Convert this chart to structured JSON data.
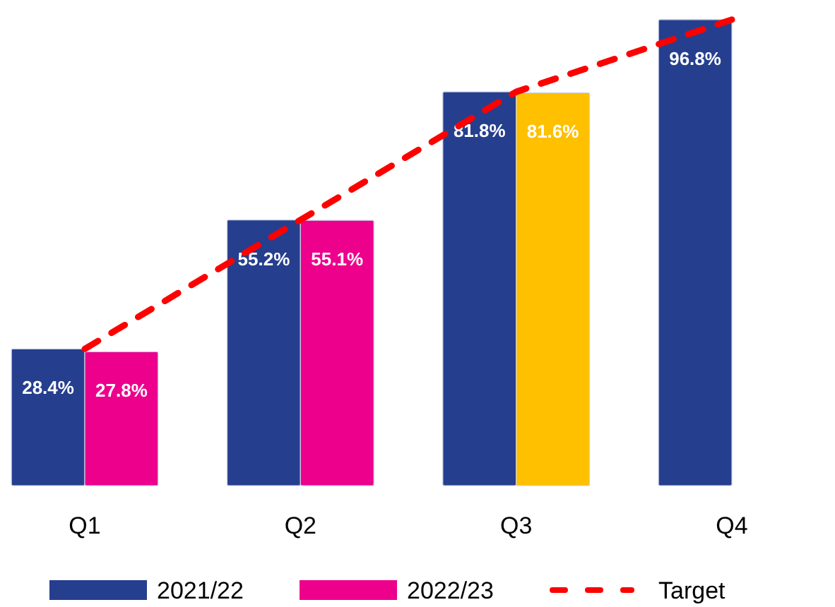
{
  "chart_data": {
    "type": "bar",
    "categories": [
      "Q1",
      "Q2",
      "Q3",
      "Q4"
    ],
    "ylim": [
      0,
      100
    ],
    "tick_labels": "x",
    "legend": "bottom",
    "series": [
      {
        "name": "2021/22",
        "color": "#253f8e",
        "values": [
          28.4,
          55.2,
          81.8,
          96.8
        ],
        "value_labels": [
          "28.4%",
          "55.2%",
          "81.8%",
          "96.8%"
        ]
      },
      {
        "name": "2022/23",
        "color": "#ec008c",
        "colors": [
          "#ec008c",
          "#ec008c",
          "#ffc000",
          null
        ],
        "values": [
          27.8,
          55.1,
          81.6,
          null
        ],
        "value_labels": [
          "27.8%",
          "55.1%",
          "81.6%",
          null
        ]
      },
      {
        "name": "Target",
        "type": "line",
        "color": "#ff0000",
        "line_style": "dashed",
        "values": [
          28.4,
          55.2,
          81.8,
          96.8
        ]
      }
    ]
  }
}
